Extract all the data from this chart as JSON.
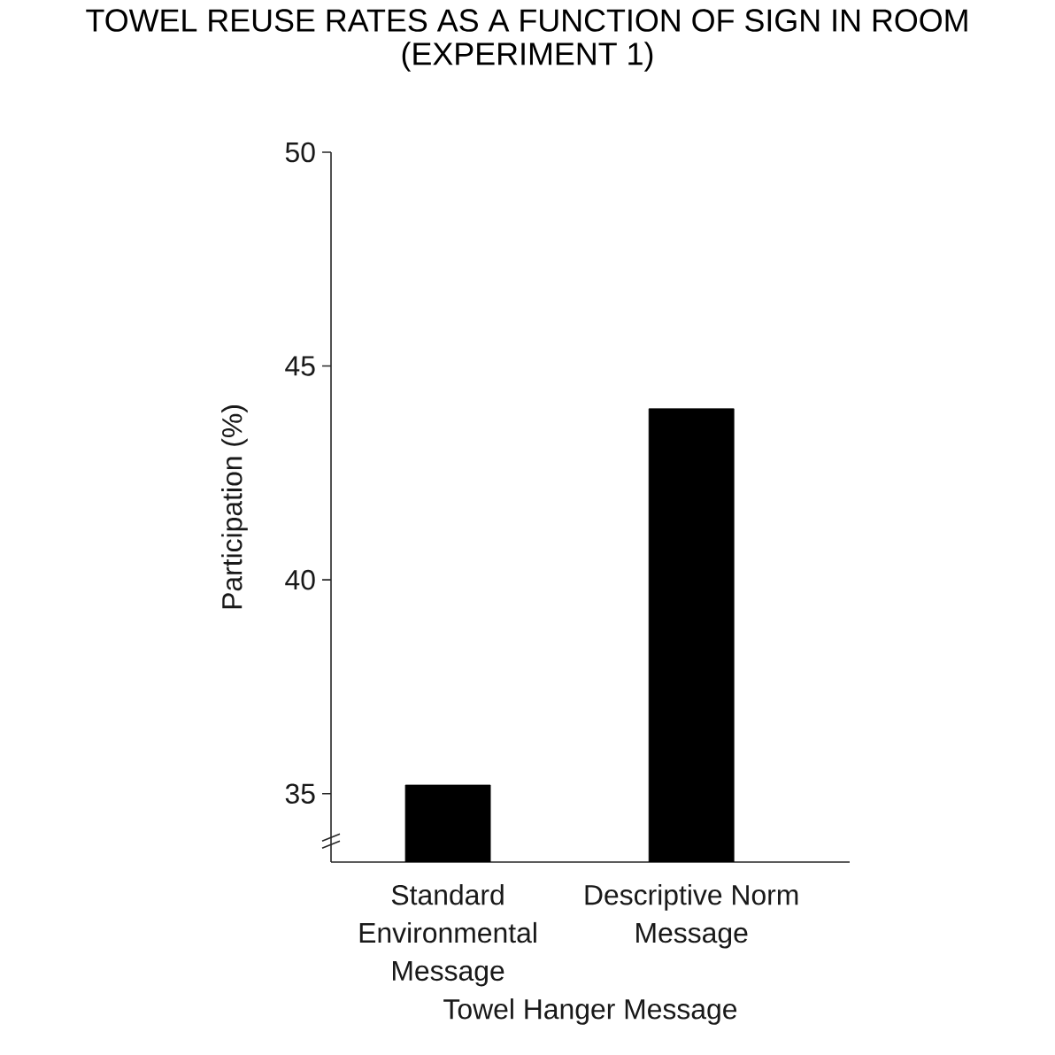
{
  "chart_data": {
    "type": "bar",
    "title": "TOWEL REUSE RATES AS A FUNCTION OF SIGN IN ROOM (EXPERIMENT 1)",
    "xlabel": "Towel Hanger Message",
    "ylabel": "Participation (%)",
    "categories": [
      "Standard Environmental Message",
      "Descriptive Norm Message"
    ],
    "values": [
      35.2,
      44.0
    ],
    "color": "#000000",
    "ylim": [
      33.4,
      50
    ],
    "yticks": [
      35,
      40,
      45,
      50
    ]
  }
}
